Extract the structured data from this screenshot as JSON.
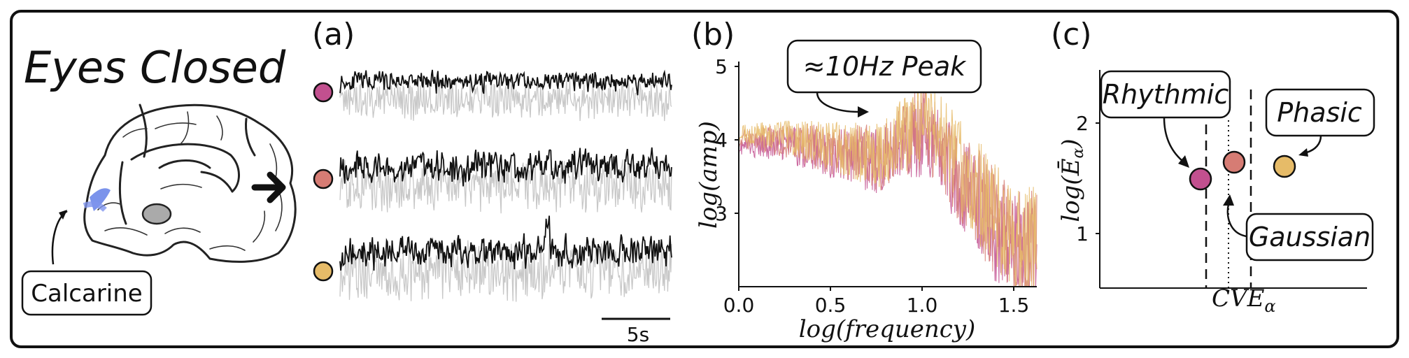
{
  "title": "Eyes Closed",
  "brain_label": "Calcarine",
  "panels": {
    "a": {
      "label": "(a)",
      "scalebar_label": "5s",
      "dots": [
        {
          "name": "rhythmic",
          "color": "#c2508f"
        },
        {
          "name": "gaussian",
          "color": "#d67c74"
        },
        {
          "name": "phasic",
          "color": "#e6bb68"
        }
      ]
    },
    "b": {
      "label": "(b)",
      "peak_label": "≈10Hz Peak",
      "xlabel": "log(frequency)",
      "ylabel": "log(amp)",
      "xticks": [
        "0.0",
        "0.5",
        "1.0",
        "1.5"
      ],
      "yticks": [
        "3",
        "4",
        "5"
      ]
    },
    "c": {
      "label": "(c)",
      "xlabel": "CVE",
      "xlabel_sub": "α",
      "ylabel": "log(Ē",
      "ylabel_sub": "α",
      "ylabel_close": ")",
      "yticks": [
        "1",
        "2"
      ],
      "boxes": {
        "rhythmic": "Rhythmic",
        "phasic": "Phasic",
        "gaussian": "Gaussian"
      }
    }
  },
  "colors": {
    "rhythmic": "#c2508f",
    "gaussian": "#d67c74",
    "phasic": "#e6bb68",
    "calcarine": "#5a78e6",
    "trace_gray": "#c8c8c8"
  },
  "chart_data": [
    {
      "type": "line",
      "title": "",
      "xlabel": "log(frequency)",
      "ylabel": "log(amp)",
      "xlim": [
        0.0,
        1.6
      ],
      "ylim": [
        2.0,
        5.0
      ],
      "series": [
        {
          "x": [
            0.0,
            0.25,
            0.5,
            0.75,
            1.0,
            1.25,
            1.5
          ],
          "values": [
            3.9,
            3.95,
            3.8,
            3.7,
            4.1,
            3.2,
            2.4
          ]
        },
        {
          "x": [
            0.0,
            0.25,
            0.5,
            0.75,
            1.0,
            1.25,
            1.5
          ],
          "values": [
            4.0,
            4.0,
            3.85,
            3.75,
            4.2,
            3.3,
            2.5
          ]
        },
        {
          "x": [
            0.0,
            0.25,
            0.5,
            0.75,
            1.0,
            1.25,
            1.5
          ],
          "values": [
            4.1,
            4.05,
            3.9,
            3.8,
            4.3,
            3.4,
            2.6
          ]
        }
      ]
    },
    {
      "type": "scatter",
      "title": "",
      "xlabel": "CVE_α",
      "ylabel": "log(Ē_α)",
      "ylim": [
        0.5,
        2.5
      ],
      "series": [
        {
          "x": [
            0.975
          ],
          "values": [
            1.5
          ]
        },
        {
          "x": [
            1.04
          ],
          "values": [
            1.65
          ]
        },
        {
          "x": [
            1.27
          ],
          "values": [
            1.6
          ]
        }
      ]
    }
  ]
}
